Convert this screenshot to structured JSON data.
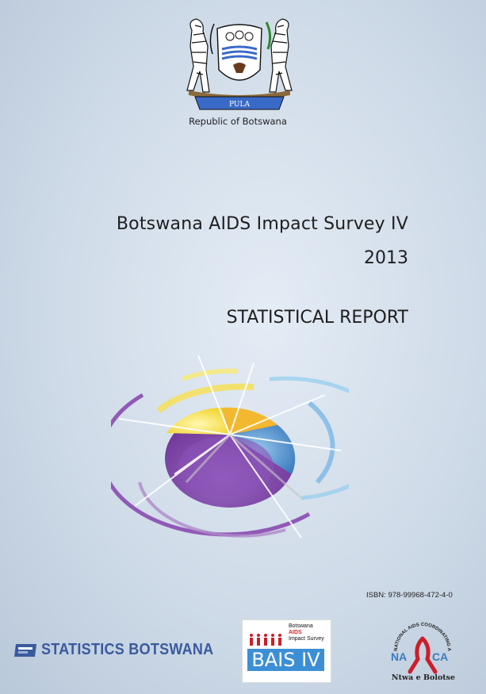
{
  "cover": {
    "caption": "Republic of Botswana",
    "motto": "PULA",
    "title": "Botswana AIDS Impact Survey IV",
    "year": "2013",
    "report": "STATISTICAL REPORT",
    "isbn": "ISBN:  978-99968-472-4-0"
  },
  "logos": {
    "statistics": "STATISTICS BOTSWANA",
    "bais_line1": "Botswana",
    "bais_line2": "AIDS",
    "bais_line3": "Impact Survey",
    "bais_main": "BAIS IV",
    "naca_arc": "NATIONAL AIDS COORDINATING AGENCY",
    "naca_letters": "NACA",
    "naca_motto": "Ntwa e Bolotse"
  },
  "colors": {
    "purple": "#7b3fa0",
    "yellow": "#f2d225",
    "blue": "#4a8ec9",
    "orange": "#e88a2a",
    "red_ribbon": "#cc1e28"
  }
}
